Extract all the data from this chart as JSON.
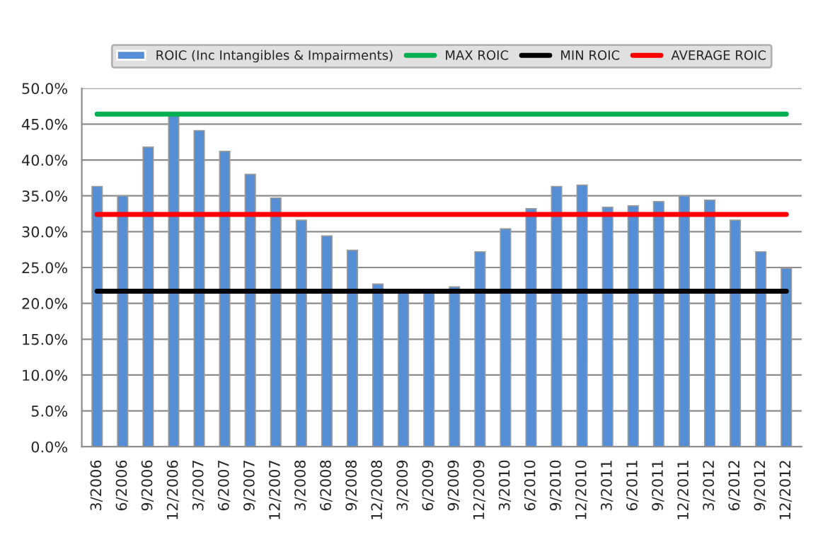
{
  "chart_data": {
    "type": "bar",
    "categories": [
      "3/2006",
      "6/2006",
      "9/2006",
      "12/2006",
      "3/2007",
      "6/2007",
      "9/2007",
      "12/2007",
      "3/2008",
      "6/2008",
      "9/2008",
      "12/2008",
      "3/2009",
      "6/2009",
      "9/2009",
      "12/2009",
      "3/2010",
      "6/2010",
      "9/2010",
      "12/2010",
      "3/2011",
      "6/2011",
      "9/2011",
      "12/2011",
      "3/2012",
      "6/2012",
      "9/2012",
      "12/2012"
    ],
    "series": [
      {
        "name": "ROIC (Inc Intangibles & Impairments)",
        "color": "#558ed5",
        "values": [
          36.3,
          35.0,
          41.8,
          46.4,
          44.1,
          41.2,
          38.0,
          34.7,
          31.6,
          29.4,
          27.4,
          22.7,
          21.7,
          21.8,
          22.3,
          27.2,
          30.4,
          33.2,
          36.3,
          36.5,
          33.4,
          33.6,
          34.2,
          35.0,
          34.4,
          31.6,
          27.2,
          24.9
        ]
      },
      {
        "name": "MAX ROIC",
        "type": "line",
        "color": "#00b050",
        "values": [
          46.4,
          46.4,
          46.4,
          46.4,
          46.4,
          46.4,
          46.4,
          46.4,
          46.4,
          46.4,
          46.4,
          46.4,
          46.4,
          46.4,
          46.4,
          46.4,
          46.4,
          46.4,
          46.4,
          46.4,
          46.4,
          46.4,
          46.4,
          46.4,
          46.4,
          46.4,
          46.4,
          46.4
        ]
      },
      {
        "name": "MIN ROIC",
        "type": "line",
        "color": "#000000",
        "values": [
          21.7,
          21.7,
          21.7,
          21.7,
          21.7,
          21.7,
          21.7,
          21.7,
          21.7,
          21.7,
          21.7,
          21.7,
          21.7,
          21.7,
          21.7,
          21.7,
          21.7,
          21.7,
          21.7,
          21.7,
          21.7,
          21.7,
          21.7,
          21.7,
          21.7,
          21.7,
          21.7,
          21.7
        ]
      },
      {
        "name": "AVERAGE ROIC",
        "type": "line",
        "color": "#ff0000",
        "values": [
          32.4,
          32.4,
          32.4,
          32.4,
          32.4,
          32.4,
          32.4,
          32.4,
          32.4,
          32.4,
          32.4,
          32.4,
          32.4,
          32.4,
          32.4,
          32.4,
          32.4,
          32.4,
          32.4,
          32.4,
          32.4,
          32.4,
          32.4,
          32.4,
          32.4,
          32.4,
          32.4,
          32.4
        ]
      }
    ],
    "ylim": [
      0,
      50
    ],
    "yticks": [
      {
        "value": 0,
        "label": "0.0%"
      },
      {
        "value": 5,
        "label": "5.0%"
      },
      {
        "value": 10,
        "label": "10.0%"
      },
      {
        "value": 15,
        "label": "15.0%"
      },
      {
        "value": 20,
        "label": "20.0%"
      },
      {
        "value": 25,
        "label": "25.0%"
      },
      {
        "value": 30,
        "label": "30.0%"
      },
      {
        "value": 35,
        "label": "35.0%"
      },
      {
        "value": 40,
        "label": "40.0%"
      },
      {
        "value": 45,
        "label": "45.0%"
      },
      {
        "value": 50,
        "label": "50.0%"
      }
    ],
    "grid": "y",
    "legend": "top",
    "marker": "none",
    "line_style": "solid"
  }
}
